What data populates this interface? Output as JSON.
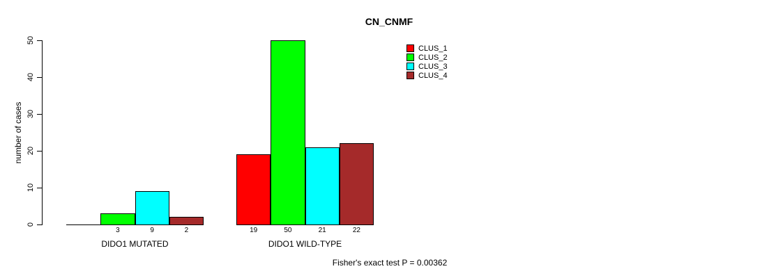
{
  "title": "CN_CNMF",
  "footer": "Fisher's exact test P = 0.00362",
  "colors": {
    "clus_1": "#FF0000",
    "clus_2": "#00FF00",
    "clus_3": "#00FFFF",
    "clus_4": "#A52A2A",
    "axis": "#000000",
    "background": "#FFFFFF"
  },
  "legend": {
    "position": "top-right",
    "entries": [
      {
        "label": "CLUS_1",
        "color": "#FF0000"
      },
      {
        "label": "CLUS_2",
        "color": "#00FF00"
      },
      {
        "label": "CLUS_3",
        "color": "#00FFFF"
      },
      {
        "label": "CLUS_4",
        "color": "#A52A2A"
      }
    ]
  },
  "chart_data": {
    "type": "bar",
    "title": "CN_CNMF",
    "xlabel": "",
    "ylabel": "number of cases",
    "ylim": [
      0,
      50
    ],
    "yticks": [
      0,
      10,
      20,
      30,
      40,
      50
    ],
    "grid": false,
    "legend_position": "top-right",
    "categories": [
      "DIDO1 MUTATED",
      "DIDO1 WILD-TYPE"
    ],
    "series": [
      {
        "name": "CLUS_1",
        "color": "#FF0000",
        "values": [
          0,
          19
        ]
      },
      {
        "name": "CLUS_2",
        "color": "#00FF00",
        "values": [
          3,
          50
        ]
      },
      {
        "name": "CLUS_3",
        "color": "#00FFFF",
        "values": [
          9,
          21
        ]
      },
      {
        "name": "CLUS_4",
        "color": "#A52A2A",
        "values": [
          2,
          22
        ]
      }
    ],
    "bar_labels": [
      [
        "",
        "3",
        "9",
        "2"
      ],
      [
        "19",
        "50",
        "21",
        "22"
      ]
    ],
    "annotation": "Fisher's exact test P = 0.00362"
  }
}
